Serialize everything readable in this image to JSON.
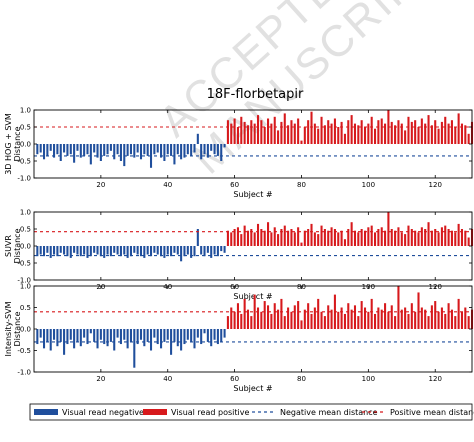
{
  "title": "18F-florbetapir",
  "watermark": "ACCEPTED MANUSCRIPT",
  "colors": {
    "negative": "#1f4e9c",
    "positive": "#d7191c",
    "negative_mean": "#1f4e9c",
    "positive_mean": "#d7191c",
    "frame": "#000000"
  },
  "legend": {
    "placement": "bottom",
    "items": [
      {
        "label": "Visual read negative",
        "style": "bar",
        "color": "#1f4e9c"
      },
      {
        "label": "Visual read positive",
        "style": "bar",
        "color": "#d7191c"
      },
      {
        "label": "Negative mean distance",
        "style": "dash",
        "color": "#1f4e9c"
      },
      {
        "label": "Positive mean distance",
        "style": "dash",
        "color": "#d7191c"
      }
    ]
  },
  "chart_data": [
    {
      "type": "bar",
      "ylabel": "3D HOG + SVM\nDistance",
      "xlabel": "Subject #",
      "xlim": [
        0,
        131
      ],
      "ylim": [
        -1.0,
        1.0
      ],
      "yticks": [
        -1.0,
        -0.5,
        0.0,
        0.5,
        1.0
      ],
      "ytick_labels": [
        "-1.0",
        "-0.5",
        "0.0",
        "0.5",
        "1.0"
      ],
      "xticks": [
        20,
        40,
        60,
        80,
        100,
        120
      ],
      "neg_mean": -0.35,
      "pos_mean": 0.5,
      "series": [
        {
          "name": "Visual read negative",
          "x_start": 1,
          "values": [
            -0.3,
            -0.25,
            -0.45,
            -0.35,
            -0.2,
            -0.4,
            -0.3,
            -0.5,
            -0.25,
            -0.35,
            -0.3,
            -0.55,
            -0.2,
            -0.4,
            -0.35,
            -0.3,
            -0.6,
            -0.25,
            -0.4,
            -0.5,
            -0.35,
            -0.3,
            -0.2,
            -0.45,
            -0.3,
            -0.5,
            -0.65,
            -0.35,
            -0.3,
            -0.4,
            -0.25,
            -0.45,
            -0.3,
            -0.35,
            -0.7,
            -0.3,
            -0.25,
            -0.4,
            -0.5,
            -0.3,
            -0.35,
            -0.6,
            -0.3,
            -0.45,
            -0.4,
            -0.3,
            -0.35,
            -0.25,
            0.3,
            -0.45,
            -0.3,
            -0.4,
            -0.2,
            -0.3,
            -0.35,
            -0.5,
            -0.1
          ]
        },
        {
          "name": "Visual read positive",
          "x_start": 58,
          "values": [
            0.7,
            0.6,
            0.75,
            0.5,
            0.8,
            0.65,
            0.55,
            0.7,
            0.6,
            0.85,
            0.7,
            0.5,
            0.75,
            0.6,
            0.8,
            0.4,
            0.65,
            0.9,
            0.55,
            0.7,
            0.6,
            0.75,
            0.1,
            0.5,
            0.7,
            0.95,
            0.6,
            0.45,
            0.8,
            0.55,
            0.7,
            0.6,
            0.75,
            0.5,
            0.65,
            0.3,
            0.7,
            0.85,
            0.6,
            0.55,
            0.7,
            0.5,
            0.6,
            0.8,
            0.45,
            0.7,
            0.75,
            0.6,
            1.0,
            0.65,
            0.55,
            0.7,
            0.6,
            0.4,
            0.8,
            0.65,
            0.7,
            0.5,
            0.75,
            0.6,
            0.85,
            0.55,
            0.7,
            0.45,
            0.65,
            0.8,
            0.6,
            0.7,
            0.5,
            0.9,
            0.6,
            0.55,
            0.3,
            0.65
          ]
        }
      ]
    },
    {
      "type": "bar",
      "ylabel": "SUVR\nDistance",
      "xlabel": "Subject #",
      "xlim": [
        0,
        131
      ],
      "ylim": [
        -1.0,
        1.0
      ],
      "yticks": [
        -1.0,
        -0.5,
        0.0,
        0.5,
        1.0
      ],
      "ytick_labels": [
        "-1.0",
        "-0.5",
        "0.0",
        "0.5",
        "1.0"
      ],
      "xticks": [
        20,
        40,
        60,
        80,
        100,
        120
      ],
      "neg_mean": -0.28,
      "pos_mean": 0.42,
      "series": [
        {
          "name": "Visual read negative",
          "x_start": 1,
          "values": [
            -0.3,
            -0.25,
            -0.3,
            -0.2,
            -0.35,
            -0.25,
            -0.3,
            -0.2,
            -0.25,
            -0.3,
            -0.35,
            -0.2,
            -0.25,
            -0.3,
            -0.25,
            -0.35,
            -0.3,
            -0.2,
            -0.25,
            -0.3,
            -0.35,
            -0.25,
            -0.3,
            -0.2,
            -0.25,
            -0.3,
            -0.25,
            -0.35,
            -0.3,
            -0.2,
            -0.25,
            -0.3,
            -0.35,
            -0.25,
            -0.3,
            -0.2,
            -0.25,
            -0.3,
            -0.35,
            -0.25,
            -0.3,
            -0.2,
            -0.25,
            -0.45,
            -0.3,
            -0.25,
            -0.35,
            -0.3,
            0.5,
            -0.25,
            -0.3,
            -0.2,
            -0.35,
            -0.25,
            -0.3,
            -0.15,
            -0.2
          ]
        },
        {
          "name": "Visual read positive",
          "x_start": 58,
          "values": [
            0.45,
            0.4,
            0.5,
            0.55,
            0.35,
            0.6,
            0.45,
            0.5,
            0.4,
            0.65,
            0.5,
            0.45,
            0.7,
            0.4,
            0.55,
            0.35,
            0.5,
            0.6,
            0.45,
            0.5,
            0.4,
            0.55,
            0.1,
            0.45,
            0.5,
            0.65,
            0.4,
            0.35,
            0.6,
            0.5,
            0.45,
            0.55,
            0.5,
            0.4,
            0.45,
            0.2,
            0.5,
            0.7,
            0.45,
            0.4,
            0.5,
            0.45,
            0.55,
            0.6,
            0.4,
            0.5,
            0.55,
            0.45,
            1.0,
            0.5,
            0.45,
            0.55,
            0.4,
            0.35,
            0.6,
            0.5,
            0.45,
            0.4,
            0.55,
            0.5,
            0.7,
            0.45,
            0.5,
            0.4,
            0.55,
            0.6,
            0.5,
            0.45,
            0.4,
            0.65,
            0.5,
            0.45,
            0.25,
            0.5
          ]
        }
      ]
    },
    {
      "type": "bar",
      "ylabel": "Intensity-SVM\nDistance",
      "xlabel": "Subject #",
      "xlim": [
        0,
        131
      ],
      "ylim": [
        -1.0,
        1.0
      ],
      "yticks": [
        -1.0,
        -0.5,
        0.0,
        0.5,
        1.0
      ],
      "ytick_labels": [
        "-1.0",
        "-0.5",
        "0.0",
        "0.5",
        "1.0"
      ],
      "xticks": [
        20,
        40,
        60,
        80,
        100,
        120
      ],
      "neg_mean": -0.3,
      "pos_mean": 0.4,
      "series": [
        {
          "name": "Visual read negative",
          "x_start": 1,
          "values": [
            -0.35,
            -0.2,
            -0.45,
            -0.3,
            -0.5,
            -0.25,
            -0.4,
            -0.3,
            -0.6,
            -0.35,
            -0.25,
            -0.45,
            -0.3,
            -0.4,
            -0.2,
            -0.35,
            -0.1,
            -0.3,
            -0.45,
            -0.25,
            -0.35,
            -0.4,
            -0.3,
            -0.5,
            -0.2,
            -0.35,
            -0.25,
            -0.45,
            -0.3,
            -0.9,
            -0.35,
            -0.25,
            -0.4,
            -0.3,
            -0.5,
            -0.2,
            -0.35,
            -0.45,
            -0.3,
            -0.25,
            -0.6,
            -0.3,
            -0.4,
            -0.5,
            -0.35,
            -0.25,
            -0.3,
            -0.45,
            -0.2,
            -0.35,
            -0.1,
            -0.3,
            -0.4,
            -0.25,
            -0.35,
            -0.3,
            -0.2
          ]
        },
        {
          "name": "Visual read positive",
          "x_start": 58,
          "values": [
            0.3,
            0.5,
            0.4,
            0.6,
            0.35,
            0.7,
            0.45,
            0.3,
            0.8,
            0.5,
            0.4,
            0.65,
            0.55,
            0.35,
            0.6,
            0.45,
            0.7,
            0.3,
            0.5,
            0.4,
            0.55,
            0.65,
            0.2,
            0.45,
            0.6,
            0.35,
            0.5,
            0.7,
            0.4,
            0.3,
            0.55,
            0.45,
            0.8,
            0.4,
            0.5,
            0.35,
            0.6,
            0.45,
            0.55,
            0.3,
            0.65,
            0.5,
            0.4,
            0.7,
            0.35,
            0.5,
            0.45,
            0.6,
            0.4,
            0.55,
            0.3,
            1.0,
            0.45,
            0.5,
            0.35,
            0.6,
            0.4,
            0.85,
            0.5,
            0.45,
            0.3,
            0.55,
            0.65,
            0.4,
            0.5,
            0.35,
            0.6,
            0.45,
            0.3,
            0.7,
            0.4,
            0.5,
            0.3,
            0.45
          ]
        }
      ]
    }
  ]
}
